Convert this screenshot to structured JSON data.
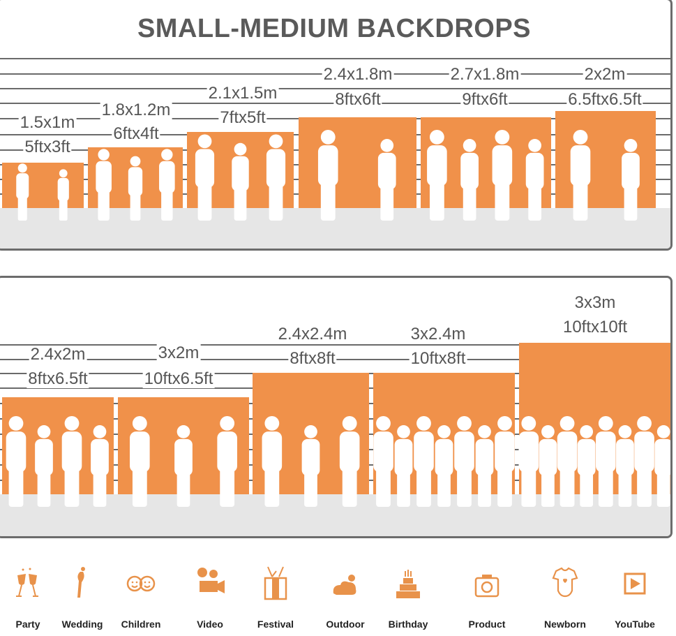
{
  "title": "SMALL-MEDIUM BACKDROPS",
  "colors": {
    "backdrop": "#f0914a",
    "floor": "#e6e6e6",
    "lines": "#6a6a6a",
    "text": "#555555",
    "icons": "#e8924a"
  },
  "panel1": [
    {
      "metric": "1.5x1m",
      "imperial": "5ftx3ft"
    },
    {
      "metric": "1.8x1.2m",
      "imperial": "6ftx4ft"
    },
    {
      "metric": "2.1x1.5m",
      "imperial": "7ftx5ft"
    },
    {
      "metric": "2.4x1.8m",
      "imperial": "8ftx6ft"
    },
    {
      "metric": "2.7x1.8m",
      "imperial": "9ftx6ft"
    },
    {
      "metric": "2x2m",
      "imperial": "6.5ftx6.5ft"
    }
  ],
  "panel2": [
    {
      "metric": "2.4x2m",
      "imperial": "8ftx6.5ft"
    },
    {
      "metric": "3x2m",
      "imperial": "10ftx6.5ft"
    },
    {
      "metric": "2.4x2.4m",
      "imperial": "8ftx8ft"
    },
    {
      "metric": "3x2.4m",
      "imperial": "10ftx8ft"
    },
    {
      "metric": "3x3m",
      "imperial": "10ftx10ft"
    }
  ],
  "uses": [
    {
      "label": "Party",
      "icon": "champagne-glasses-icon"
    },
    {
      "label": "Wedding",
      "icon": "wedding-couple-icon"
    },
    {
      "label": "Children",
      "icon": "children-faces-icon"
    },
    {
      "label": "Video",
      "icon": "video-camera-icon"
    },
    {
      "label": "Festival",
      "icon": "gift-box-icon"
    },
    {
      "label": "Outdoor",
      "icon": "cloud-icon"
    },
    {
      "label": "Birthday",
      "icon": "birthday-cake-icon"
    },
    {
      "label": "Product",
      "icon": "camera-icon"
    },
    {
      "label": "Newborn",
      "icon": "baby-onesie-icon"
    },
    {
      "label": "YouTube",
      "icon": "play-button-icon"
    }
  ]
}
